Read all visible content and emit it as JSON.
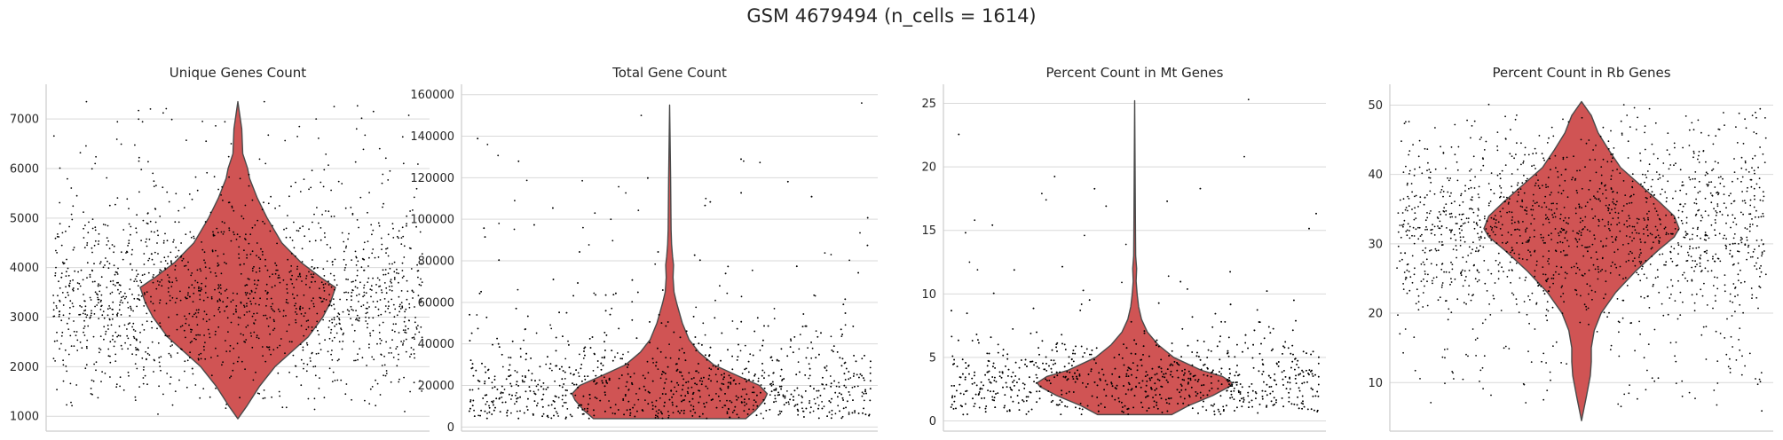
{
  "figure": {
    "suptitle": "GSM 4679494 (n_cells = 1614)",
    "violin_color": "#d05454",
    "edge_color": "#4a4a4a",
    "grid_color": "#d9d9d9",
    "point_color": "#000000"
  },
  "chart_data": [
    {
      "type": "violin",
      "title": "Unique Genes Count",
      "xlabel": "",
      "ylabel": "",
      "ylim": [
        700,
        7700
      ],
      "yticks": [
        1000,
        2000,
        3000,
        4000,
        5000,
        6000,
        7000
      ],
      "n_points": 1614,
      "grid": true,
      "median": 3500,
      "density": [
        [
          950,
          0.0
        ],
        [
          1200,
          0.09
        ],
        [
          1600,
          0.22
        ],
        [
          2000,
          0.38
        ],
        [
          2300,
          0.55
        ],
        [
          2600,
          0.72
        ],
        [
          3000,
          0.87
        ],
        [
          3300,
          0.95
        ],
        [
          3600,
          1.0
        ],
        [
          3800,
          0.85
        ],
        [
          4100,
          0.65
        ],
        [
          4500,
          0.45
        ],
        [
          5000,
          0.3
        ],
        [
          5400,
          0.2
        ],
        [
          5800,
          0.12
        ],
        [
          6000,
          0.1
        ],
        [
          6300,
          0.05
        ],
        [
          6800,
          0.04
        ],
        [
          7350,
          0.0
        ]
      ],
      "outliers": [
        6950,
        7000,
        7350,
        7200,
        7350,
        6500,
        6400,
        6800,
        6100,
        6550
      ]
    },
    {
      "type": "violin",
      "title": "Total Gene Count",
      "xlabel": "",
      "ylabel": "",
      "ylim": [
        -2000,
        165000
      ],
      "yticks": [
        0,
        20000,
        40000,
        60000,
        80000,
        100000,
        120000,
        140000,
        160000
      ],
      "n_points": 1614,
      "grid": true,
      "median": 16000,
      "density": [
        [
          4000,
          0.78
        ],
        [
          8000,
          0.88
        ],
        [
          13000,
          0.97
        ],
        [
          16000,
          1.0
        ],
        [
          20000,
          0.92
        ],
        [
          25000,
          0.68
        ],
        [
          30000,
          0.45
        ],
        [
          36000,
          0.3
        ],
        [
          42000,
          0.2
        ],
        [
          50000,
          0.13
        ],
        [
          55000,
          0.1
        ],
        [
          60000,
          0.07
        ],
        [
          65000,
          0.045
        ],
        [
          72000,
          0.035
        ],
        [
          78000,
          0.04
        ],
        [
          82000,
          0.03
        ],
        [
          88000,
          0.02
        ],
        [
          95000,
          0.015
        ],
        [
          120000,
          0.01
        ],
        [
          155000,
          0.0
        ]
      ],
      "outliers": [
        150000,
        156000,
        136000,
        128000,
        109000,
        103000,
        100000,
        96000,
        110000,
        98000
      ]
    },
    {
      "type": "violin",
      "title": "Percent Count in Mt Genes",
      "xlabel": "",
      "ylabel": "",
      "ylim": [
        -0.8,
        26.5
      ],
      "yticks": [
        0,
        5,
        10,
        15,
        20,
        25
      ],
      "n_points": 1614,
      "grid": true,
      "median": 2.9,
      "density": [
        [
          0.5,
          0.38
        ],
        [
          1.2,
          0.55
        ],
        [
          2.0,
          0.8
        ],
        [
          2.7,
          0.97
        ],
        [
          3.0,
          1.0
        ],
        [
          3.5,
          0.9
        ],
        [
          4.0,
          0.68
        ],
        [
          5.0,
          0.4
        ],
        [
          6.0,
          0.24
        ],
        [
          7.0,
          0.13
        ],
        [
          8.0,
          0.07
        ],
        [
          9.0,
          0.04
        ],
        [
          10.0,
          0.025
        ],
        [
          11.0,
          0.015
        ],
        [
          12.0,
          0.02
        ],
        [
          13.0,
          0.01
        ],
        [
          15.0,
          0.008
        ],
        [
          25.2,
          0.0
        ]
      ],
      "outliers": [
        25.3,
        20.8,
        17.9,
        17.4,
        15.8,
        14.6,
        13.9,
        12.5,
        11.9,
        11.4,
        10.9
      ]
    },
    {
      "type": "violin",
      "title": "Percent Count in Rb Genes",
      "xlabel": "",
      "ylabel": "",
      "ylim": [
        3.0,
        53.0
      ],
      "yticks": [
        10,
        20,
        30,
        40,
        50
      ],
      "n_points": 1614,
      "grid": true,
      "median": 31.5,
      "density": [
        [
          4.5,
          0.0
        ],
        [
          8.0,
          0.05
        ],
        [
          11.0,
          0.09
        ],
        [
          13.0,
          0.1
        ],
        [
          15.0,
          0.1
        ],
        [
          17.5,
          0.13
        ],
        [
          20.0,
          0.2
        ],
        [
          23.0,
          0.35
        ],
        [
          26.0,
          0.55
        ],
        [
          29.0,
          0.78
        ],
        [
          31.0,
          0.95
        ],
        [
          32.2,
          1.0
        ],
        [
          34.0,
          0.95
        ],
        [
          36.0,
          0.8
        ],
        [
          38.5,
          0.6
        ],
        [
          41.0,
          0.4
        ],
        [
          43.5,
          0.28
        ],
        [
          46.0,
          0.17
        ],
        [
          48.5,
          0.1
        ],
        [
          50.5,
          0.0
        ]
      ],
      "outliers": []
    }
  ]
}
